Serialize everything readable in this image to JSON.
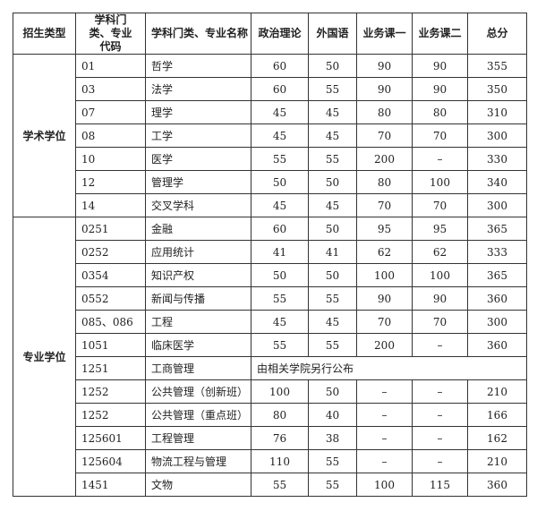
{
  "headers": [
    "招生类型",
    "学科门类、专业代码",
    "学科门类、专业名称",
    "政治理论",
    "外国语",
    "业务课一",
    "业务课二",
    "总分"
  ],
  "groups": [
    {
      "type": "学术学位",
      "rows": [
        {
          "code": "01",
          "name": "哲学",
          "politics": "60",
          "language": "50",
          "course1": "90",
          "course2": "90",
          "total": "355"
        },
        {
          "code": "03",
          "name": "法学",
          "politics": "60",
          "language": "55",
          "course1": "90",
          "course2": "90",
          "total": "350"
        },
        {
          "code": "07",
          "name": "理学",
          "politics": "45",
          "language": "45",
          "course1": "80",
          "course2": "80",
          "total": "310"
        },
        {
          "code": "08",
          "name": "工学",
          "politics": "45",
          "language": "45",
          "course1": "70",
          "course2": "70",
          "total": "300"
        },
        {
          "code": "10",
          "name": "医学",
          "politics": "55",
          "language": "55",
          "course1": "200",
          "course2": "–",
          "total": "330"
        },
        {
          "code": "12",
          "name": "管理学",
          "politics": "50",
          "language": "50",
          "course1": "80",
          "course2": "100",
          "total": "340"
        },
        {
          "code": "14",
          "name": "交叉学科",
          "politics": "45",
          "language": "45",
          "course1": "70",
          "course2": "70",
          "total": "300"
        }
      ]
    },
    {
      "type": "专业学位",
      "rows": [
        {
          "code": "0251",
          "name": "金融",
          "politics": "60",
          "language": "50",
          "course1": "95",
          "course2": "95",
          "total": "365"
        },
        {
          "code": "0252",
          "name": "应用统计",
          "politics": "41",
          "language": "41",
          "course1": "62",
          "course2": "62",
          "total": "333"
        },
        {
          "code": "0354",
          "name": "知识产权",
          "politics": "50",
          "language": "50",
          "course1": "100",
          "course2": "100",
          "total": "365"
        },
        {
          "code": "0552",
          "name": "新闻与传播",
          "politics": "55",
          "language": "55",
          "course1": "90",
          "course2": "90",
          "total": "360"
        },
        {
          "code": "085、086",
          "name": "工程",
          "politics": "45",
          "language": "45",
          "course1": "70",
          "course2": "70",
          "total": "300"
        },
        {
          "code": "1051",
          "name": "临床医学",
          "politics": "55",
          "language": "55",
          "course1": "200",
          "course2": "–",
          "total": "360"
        },
        {
          "code": "1251",
          "name": "工商管理",
          "note": "由相关学院另行公布"
        },
        {
          "code": "1252",
          "name": "公共管理（创新班）",
          "politics": "100",
          "language": "50",
          "course1": "–",
          "course2": "–",
          "total": "210"
        },
        {
          "code": "1252",
          "name": "公共管理（重点班）",
          "politics": "80",
          "language": "40",
          "course1": "–",
          "course2": "–",
          "total": "166"
        },
        {
          "code": "125601",
          "name": "工程管理",
          "politics": "76",
          "language": "38",
          "course1": "–",
          "course2": "–",
          "total": "162"
        },
        {
          "code": "125604",
          "name": "物流工程与管理",
          "politics": "110",
          "language": "55",
          "course1": "–",
          "course2": "–",
          "total": "210"
        },
        {
          "code": "1451",
          "name": "文物",
          "politics": "55",
          "language": "55",
          "course1": "100",
          "course2": "115",
          "total": "360"
        }
      ]
    }
  ]
}
